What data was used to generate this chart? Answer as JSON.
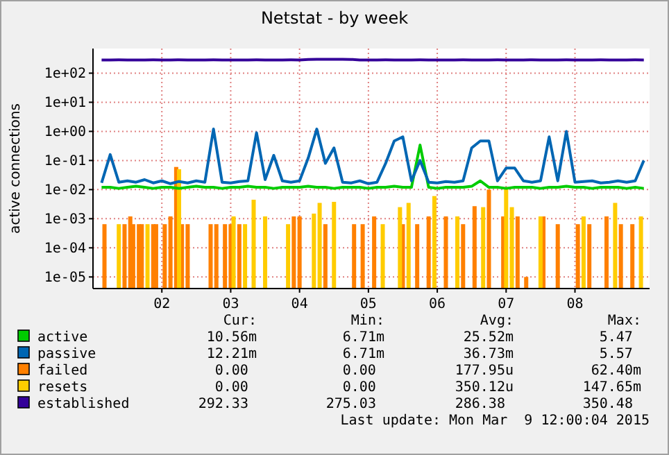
{
  "chart_data": {
    "type": "line",
    "title": "Netstat - by week",
    "ylabel": "active connections",
    "log": "y",
    "grid": true,
    "legend": "bottom left",
    "xlim": [
      "2015-03-01T00:00",
      "2015-03-09T02:00"
    ],
    "xticks": [
      {
        "value": "2015-03-02T00:00",
        "label": "02"
      },
      {
        "value": "2015-03-03T00:00",
        "label": "03"
      },
      {
        "value": "2015-03-04T00:00",
        "label": "04"
      },
      {
        "value": "2015-03-05T00:00",
        "label": "05"
      },
      {
        "value": "2015-03-06T00:00",
        "label": "06"
      },
      {
        "value": "2015-03-07T00:00",
        "label": "07"
      },
      {
        "value": "2015-03-08T00:00",
        "label": "08"
      }
    ],
    "ylim": [
      4e-06,
      700
    ],
    "yticks": [
      {
        "value": 1e-05,
        "label": "1e-05"
      },
      {
        "value": 0.0001,
        "label": "1e-04"
      },
      {
        "value": 0.001,
        "label": "1e-03"
      },
      {
        "value": 0.01,
        "label": "1e-02"
      },
      {
        "value": 0.1,
        "label": "1e-01"
      },
      {
        "value": 1,
        "label": "1e+00"
      },
      {
        "value": 10,
        "label": "1e+01"
      },
      {
        "value": 100,
        "label": "1e+02"
      }
    ],
    "x": [
      "2015-03-01T03:00",
      "2015-03-01T06:00",
      "2015-03-01T09:00",
      "2015-03-01T12:00",
      "2015-03-01T15:00",
      "2015-03-01T18:00",
      "2015-03-01T21:00",
      "2015-03-02T00:00",
      "2015-03-02T03:00",
      "2015-03-02T06:00",
      "2015-03-02T09:00",
      "2015-03-02T12:00",
      "2015-03-02T15:00",
      "2015-03-02T18:00",
      "2015-03-02T21:00",
      "2015-03-03T00:00",
      "2015-03-03T03:00",
      "2015-03-03T06:00",
      "2015-03-03T09:00",
      "2015-03-03T12:00",
      "2015-03-03T15:00",
      "2015-03-03T18:00",
      "2015-03-03T21:00",
      "2015-03-04T00:00",
      "2015-03-04T03:00",
      "2015-03-04T06:00",
      "2015-03-04T09:00",
      "2015-03-04T12:00",
      "2015-03-04T15:00",
      "2015-03-04T18:00",
      "2015-03-04T21:00",
      "2015-03-05T00:00",
      "2015-03-05T03:00",
      "2015-03-05T06:00",
      "2015-03-05T09:00",
      "2015-03-05T12:00",
      "2015-03-05T15:00",
      "2015-03-05T18:00",
      "2015-03-05T21:00",
      "2015-03-06T00:00",
      "2015-03-06T03:00",
      "2015-03-06T06:00",
      "2015-03-06T09:00",
      "2015-03-06T12:00",
      "2015-03-06T15:00",
      "2015-03-06T18:00",
      "2015-03-06T21:00",
      "2015-03-07T00:00",
      "2015-03-07T03:00",
      "2015-03-07T06:00",
      "2015-03-07T09:00",
      "2015-03-07T12:00",
      "2015-03-07T15:00",
      "2015-03-07T18:00",
      "2015-03-07T21:00",
      "2015-03-08T00:00",
      "2015-03-08T03:00",
      "2015-03-08T06:00",
      "2015-03-08T09:00",
      "2015-03-08T12:00",
      "2015-03-08T15:00",
      "2015-03-08T18:00",
      "2015-03-08T21:00",
      "2015-03-09T00:00"
    ],
    "series": [
      {
        "name": "failed",
        "type": "bar",
        "color": "#ff8000",
        "x": [
          "2015-03-01T04:00",
          "2015-03-01T11:00",
          "2015-03-01T13:00",
          "2015-03-01T14:00",
          "2015-03-01T16:00",
          "2015-03-01T17:00",
          "2015-03-01T21:00",
          "2015-03-01T22:00",
          "2015-03-02T01:00",
          "2015-03-02T03:00",
          "2015-03-02T05:00",
          "2015-03-02T07:00",
          "2015-03-02T09:00",
          "2015-03-02T17:00",
          "2015-03-02T19:00",
          "2015-03-02T22:00",
          "2015-03-03T00:00",
          "2015-03-03T03:00",
          "2015-03-03T22:00",
          "2015-03-04T00:00",
          "2015-03-04T09:00",
          "2015-03-04T19:00",
          "2015-03-04T22:00",
          "2015-03-05T02:00",
          "2015-03-05T12:00",
          "2015-03-05T17:00",
          "2015-03-05T21:00",
          "2015-03-06T03:00",
          "2015-03-06T09:00",
          "2015-03-06T13:00",
          "2015-03-06T18:00",
          "2015-03-06T23:00",
          "2015-03-07T04:00",
          "2015-03-07T07:00",
          "2015-03-07T13:00",
          "2015-03-07T18:00",
          "2015-03-08T01:00",
          "2015-03-08T05:00",
          "2015-03-08T11:00",
          "2015-03-08T16:00",
          "2015-03-08T20:00"
        ],
        "values": [
          0.00065,
          0.00065,
          0.0012,
          0.00065,
          0.00065,
          0.00065,
          0.00065,
          0.00065,
          0.00065,
          0.0012,
          0.06,
          0.00065,
          0.00065,
          0.00065,
          0.00065,
          0.00065,
          0.00065,
          0.00065,
          0.0012,
          0.0012,
          0.00065,
          0.00065,
          0.00065,
          0.0012,
          0.00065,
          0.00065,
          0.0012,
          0.0012,
          0.00065,
          0.0027,
          0.01,
          0.0012,
          0.0012,
          1e-05,
          0.0012,
          0.00065,
          0.00065,
          0.00065,
          0.0012,
          0.00065,
          0.00065
        ]
      },
      {
        "name": "resets",
        "type": "bar",
        "color": "#ffcc00",
        "x": [
          "2015-03-01T09:00",
          "2015-03-01T19:00",
          "2015-03-02T06:00",
          "2015-03-03T01:00",
          "2015-03-03T05:00",
          "2015-03-03T08:00",
          "2015-03-03T12:00",
          "2015-03-03T20:00",
          "2015-03-04T05:00",
          "2015-03-04T07:00",
          "2015-03-04T12:00",
          "2015-03-05T05:00",
          "2015-03-05T11:00",
          "2015-03-05T14:00",
          "2015-03-05T23:00",
          "2015-03-06T07:00",
          "2015-03-06T16:00",
          "2015-03-07T00:00",
          "2015-03-07T02:00",
          "2015-03-07T12:00",
          "2015-03-08T03:00",
          "2015-03-08T14:00",
          "2015-03-08T23:00"
        ],
        "values": [
          0.00065,
          0.00065,
          0.05,
          0.0012,
          0.00065,
          0.0045,
          0.0012,
          0.00065,
          0.0015,
          0.0035,
          0.0038,
          0.00065,
          0.0025,
          0.0035,
          0.006,
          0.0012,
          0.0025,
          0.012,
          0.0025,
          0.0012,
          0.0012,
          0.0035,
          0.0012
        ]
      },
      {
        "name": "active",
        "color": "#00cc00",
        "values": [
          0.012,
          0.012,
          0.011,
          0.012,
          0.013,
          0.012,
          0.011,
          0.012,
          0.012,
          0.011,
          0.012,
          0.013,
          0.012,
          0.012,
          0.011,
          0.012,
          0.012,
          0.013,
          0.012,
          0.012,
          0.011,
          0.012,
          0.012,
          0.012,
          0.013,
          0.012,
          0.012,
          0.011,
          0.012,
          0.012,
          0.012,
          0.011,
          0.012,
          0.012,
          0.013,
          0.012,
          0.012,
          0.34,
          0.012,
          0.011,
          0.012,
          0.012,
          0.012,
          0.013,
          0.02,
          0.012,
          0.012,
          0.011,
          0.012,
          0.012,
          0.012,
          0.011,
          0.012,
          0.012,
          0.013,
          0.012,
          0.012,
          0.011,
          0.012,
          0.012,
          0.012,
          0.011,
          0.012,
          0.011
        ]
      },
      {
        "name": "passive",
        "color": "#0066b3",
        "values": [
          0.017,
          0.16,
          0.018,
          0.02,
          0.018,
          0.022,
          0.017,
          0.02,
          0.016,
          0.019,
          0.017,
          0.02,
          0.018,
          1.2,
          0.018,
          0.017,
          0.019,
          0.02,
          0.9,
          0.022,
          0.15,
          0.02,
          0.018,
          0.02,
          0.12,
          1.2,
          0.08,
          0.27,
          0.018,
          0.017,
          0.02,
          0.016,
          0.018,
          0.08,
          0.47,
          0.65,
          0.02,
          0.1,
          0.018,
          0.017,
          0.019,
          0.018,
          0.02,
          0.27,
          0.47,
          0.47,
          0.02,
          0.055,
          0.055,
          0.02,
          0.018,
          0.02,
          0.65,
          0.02,
          1.0,
          0.018,
          0.019,
          0.02,
          0.017,
          0.018,
          0.02,
          0.018,
          0.02,
          0.1
        ]
      },
      {
        "name": "established",
        "color": "#330099",
        "values": [
          285,
          284,
          286,
          285,
          283,
          285,
          286,
          284,
          285,
          286,
          285,
          284,
          285,
          286,
          284,
          285,
          285,
          284,
          286,
          285,
          284,
          285,
          286,
          285,
          295,
          300,
          300,
          298,
          300,
          297,
          285,
          284,
          285,
          286,
          285,
          284,
          285,
          286,
          284,
          285,
          285,
          284,
          286,
          285,
          284,
          285,
          286,
          285,
          284,
          285,
          286,
          285,
          284,
          285,
          286,
          285,
          284,
          285,
          286,
          285,
          284,
          285,
          286,
          285
        ]
      }
    ],
    "annotations": [
      "Cur:",
      "Min:",
      "Avg:",
      "Max:",
      "10.56m",
      "6.71m",
      "25.52m",
      "5.47",
      "12.21m",
      "6.71m",
      "36.73m",
      "5.57",
      "0.00",
      "0.00",
      "177.95u",
      "62.40m",
      "0.00",
      "0.00",
      "350.12u",
      "147.65m",
      "292.33",
      "275.03",
      "286.38",
      "350.48",
      "Last update: Mon Mar  9 12:00:04 2015"
    ]
  }
}
